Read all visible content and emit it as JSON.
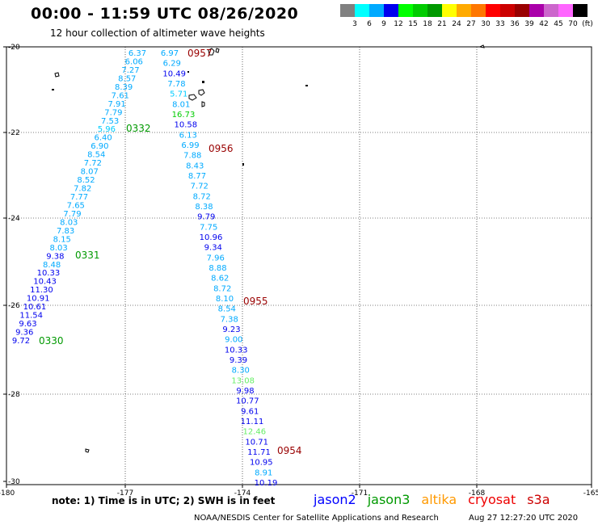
{
  "title": "00:00 - 11:59 UTC 08/26/2020",
  "subtitle": "12 hour collection of altimeter wave heights",
  "legend": {
    "colors": [
      "#808080",
      "#00ffff",
      "#00aaff",
      "#0000ee",
      "#00ff00",
      "#00cc00",
      "#009900",
      "#ffff00",
      "#ffaa00",
      "#ff7700",
      "#ff0000",
      "#cc0000",
      "#990000",
      "#aa00aa",
      "#cc66cc",
      "#ff66ff",
      "#000000"
    ],
    "labels": [
      "3",
      "6",
      "9",
      "12",
      "15",
      "18",
      "21",
      "24",
      "27",
      "30",
      "33",
      "36",
      "39",
      "42",
      "45",
      "70",
      "(ft)"
    ]
  },
  "axes": {
    "lat_labels": [
      "-20",
      "-22",
      "-24",
      "-26",
      "-28",
      "-30"
    ],
    "lon_labels": [
      "-180",
      "-177",
      "-174",
      "-171",
      "-168",
      "-165"
    ]
  },
  "passes": [
    {
      "label": "0957",
      "color": "#990000"
    },
    {
      "label": "0332",
      "color": "#009900"
    },
    {
      "label": "0956",
      "color": "#990000"
    },
    {
      "label": "0331",
      "color": "#009900"
    },
    {
      "label": "0955",
      "color": "#990000"
    },
    {
      "label": "0330",
      "color": "#009900"
    },
    {
      "label": "0954",
      "color": "#990000"
    }
  ],
  "track_west": [
    {
      "v": "6.37",
      "c": "#00aaff"
    },
    {
      "v": "6.06",
      "c": "#00aaff"
    },
    {
      "v": "7.27",
      "c": "#00aaff"
    },
    {
      "v": "8.57",
      "c": "#00aaff"
    },
    {
      "v": "8.39",
      "c": "#00aaff"
    },
    {
      "v": "7.61",
      "c": "#00aaff"
    },
    {
      "v": "7.91",
      "c": "#00aaff"
    },
    {
      "v": "7.79",
      "c": "#00aaff"
    },
    {
      "v": "7.53",
      "c": "#00aaff"
    },
    {
      "v": "5.96",
      "c": "#00ccff"
    },
    {
      "v": "6.40",
      "c": "#00aaff"
    },
    {
      "v": "6.90",
      "c": "#00aaff"
    },
    {
      "v": "8.54",
      "c": "#00aaff"
    },
    {
      "v": "7.72",
      "c": "#00aaff"
    },
    {
      "v": "8.07",
      "c": "#00aaff"
    },
    {
      "v": "8.52",
      "c": "#00aaff"
    },
    {
      "v": "7.82",
      "c": "#00aaff"
    },
    {
      "v": "7.77",
      "c": "#00aaff"
    },
    {
      "v": "7.65",
      "c": "#00aaff"
    },
    {
      "v": "7.79",
      "c": "#00aaff"
    },
    {
      "v": "8.03",
      "c": "#00aaff"
    },
    {
      "v": "7.83",
      "c": "#00aaff"
    },
    {
      "v": "8.15",
      "c": "#00aaff"
    },
    {
      "v": "8.03",
      "c": "#00aaff"
    },
    {
      "v": "9.38",
      "c": "#0000ee"
    },
    {
      "v": "8.48",
      "c": "#00aaff"
    },
    {
      "v": "10.33",
      "c": "#0000ee"
    },
    {
      "v": "10.43",
      "c": "#0000ee"
    },
    {
      "v": "11.30",
      "c": "#0000ee"
    },
    {
      "v": "10.91",
      "c": "#0000ee"
    },
    {
      "v": "10.61",
      "c": "#0000ee"
    },
    {
      "v": "11.54",
      "c": "#0000ee"
    },
    {
      "v": "9.63",
      "c": "#0000ee"
    },
    {
      "v": "9.36",
      "c": "#0000ee"
    },
    {
      "v": "9.72",
      "c": "#0000ee"
    }
  ],
  "track_east": [
    {
      "v": "6.97",
      "c": "#00aaff"
    },
    {
      "v": "6.29",
      "c": "#00aaff"
    },
    {
      "v": "10.49",
      "c": "#0000ee"
    },
    {
      "v": "7.78",
      "c": "#00aaff"
    },
    {
      "v": "5.71",
      "c": "#00ccff"
    },
    {
      "v": "8.01",
      "c": "#00aaff"
    },
    {
      "v": "16.73",
      "c": "#00cc00"
    },
    {
      "v": "10.58",
      "c": "#0000ee"
    },
    {
      "v": "6.13",
      "c": "#00aaff"
    },
    {
      "v": "6.99",
      "c": "#00aaff"
    },
    {
      "v": "7.88",
      "c": "#00aaff"
    },
    {
      "v": "8.43",
      "c": "#00aaff"
    },
    {
      "v": "8.77",
      "c": "#00aaff"
    },
    {
      "v": "7.72",
      "c": "#00aaff"
    },
    {
      "v": "8.72",
      "c": "#00aaff"
    },
    {
      "v": "8.38",
      "c": "#00aaff"
    },
    {
      "v": "9.79",
      "c": "#0000ee"
    },
    {
      "v": "7.75",
      "c": "#00aaff"
    },
    {
      "v": "10.96",
      "c": "#0000ee"
    },
    {
      "v": "9.34",
      "c": "#0000ee"
    },
    {
      "v": "7.96",
      "c": "#00aaff"
    },
    {
      "v": "8.88",
      "c": "#00aaff"
    },
    {
      "v": "8.62",
      "c": "#00aaff"
    },
    {
      "v": "8.72",
      "c": "#00aaff"
    },
    {
      "v": "8.10",
      "c": "#00aaff"
    },
    {
      "v": "8.54",
      "c": "#00aaff"
    },
    {
      "v": "7.38",
      "c": "#00aaff"
    },
    {
      "v": "9.23",
      "c": "#0000ee"
    },
    {
      "v": "9.00",
      "c": "#00aaff"
    },
    {
      "v": "10.33",
      "c": "#0000ee"
    },
    {
      "v": "9.39",
      "c": "#0000ee"
    },
    {
      "v": "8.30",
      "c": "#00aaff"
    },
    {
      "v": "13.08",
      "c": "#66ee66"
    },
    {
      "v": "9.98",
      "c": "#0000ee"
    },
    {
      "v": "10.77",
      "c": "#0000ee"
    },
    {
      "v": "9.61",
      "c": "#0000ee"
    },
    {
      "v": "11.11",
      "c": "#0000ee"
    },
    {
      "v": "12.46",
      "c": "#66ee66"
    },
    {
      "v": "10.71",
      "c": "#0000ee"
    },
    {
      "v": "11.71",
      "c": "#0000ee"
    },
    {
      "v": "10.95",
      "c": "#0000ee"
    },
    {
      "v": "8.91",
      "c": "#00aaff"
    },
    {
      "v": "10.19",
      "c": "#0000ee"
    }
  ],
  "note": "note: 1) Time is in UTC; 2) SWH is in feet",
  "satellites": [
    {
      "name": "jason2",
      "color": "#0000ff"
    },
    {
      "name": "jason3",
      "color": "#009900"
    },
    {
      "name": "altika",
      "color": "#ff9900"
    },
    {
      "name": "cryosat",
      "color": "#ee0000"
    },
    {
      "name": "s3a",
      "color": "#cc0000"
    }
  ],
  "credit": "NOAA/NESDIS Center for Satellite Applications and Research",
  "timestamp": "Aug 27 12:27:20 UTC 2020"
}
